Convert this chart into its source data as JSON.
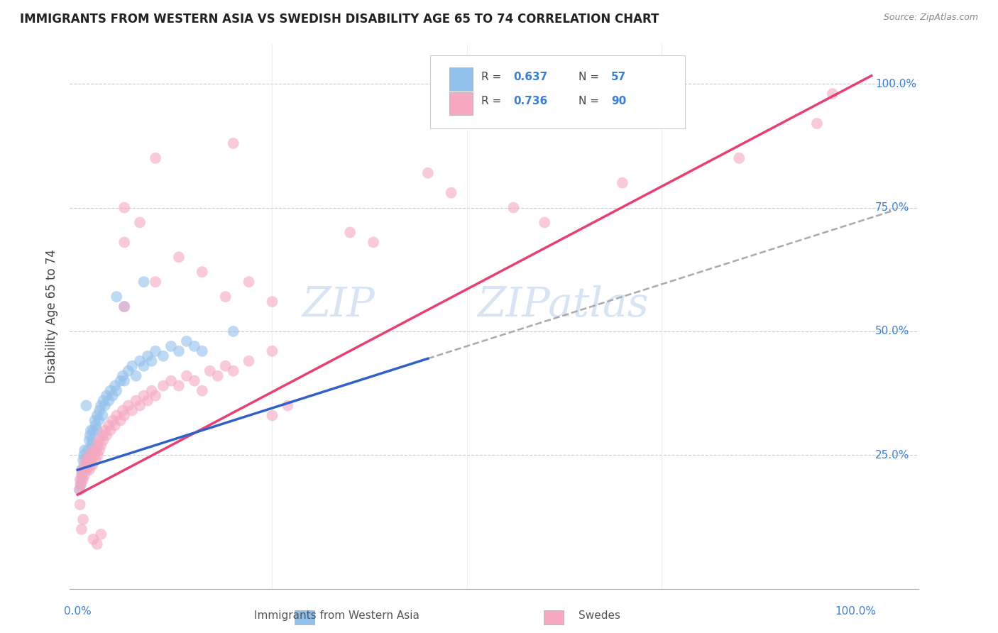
{
  "title": "IMMIGRANTS FROM WESTERN ASIA VS SWEDISH DISABILITY AGE 65 TO 74 CORRELATION CHART",
  "source": "Source: ZipAtlas.com",
  "ylabel": "Disability Age 65 to 74",
  "legend_label1": "Immigrants from Western Asia",
  "legend_label2": "Swedes",
  "r1": 0.637,
  "n1": 57,
  "r2": 0.736,
  "n2": 90,
  "blue_color": "#92c0ec",
  "pink_color": "#f5a8c0",
  "blue_line_color": "#3060c8",
  "pink_line_color": "#e84070",
  "dashed_line_color": "#aaaaaa",
  "watermark_color": "#c8d8f0",
  "blue_points": [
    [
      0.005,
      0.2
    ],
    [
      0.005,
      0.22
    ],
    [
      0.007,
      0.24
    ],
    [
      0.008,
      0.25
    ],
    [
      0.009,
      0.26
    ],
    [
      0.01,
      0.22
    ],
    [
      0.01,
      0.24
    ],
    [
      0.012,
      0.23
    ],
    [
      0.013,
      0.26
    ],
    [
      0.015,
      0.25
    ],
    [
      0.015,
      0.28
    ],
    [
      0.016,
      0.29
    ],
    [
      0.017,
      0.3
    ],
    [
      0.018,
      0.27
    ],
    [
      0.019,
      0.28
    ],
    [
      0.02,
      0.3
    ],
    [
      0.022,
      0.32
    ],
    [
      0.023,
      0.31
    ],
    [
      0.025,
      0.3
    ],
    [
      0.025,
      0.33
    ],
    [
      0.027,
      0.32
    ],
    [
      0.028,
      0.34
    ],
    [
      0.03,
      0.35
    ],
    [
      0.032,
      0.33
    ],
    [
      0.033,
      0.36
    ],
    [
      0.035,
      0.35
    ],
    [
      0.037,
      0.37
    ],
    [
      0.04,
      0.36
    ],
    [
      0.042,
      0.38
    ],
    [
      0.045,
      0.37
    ],
    [
      0.048,
      0.39
    ],
    [
      0.05,
      0.38
    ],
    [
      0.055,
      0.4
    ],
    [
      0.058,
      0.41
    ],
    [
      0.06,
      0.4
    ],
    [
      0.065,
      0.42
    ],
    [
      0.07,
      0.43
    ],
    [
      0.075,
      0.41
    ],
    [
      0.08,
      0.44
    ],
    [
      0.085,
      0.43
    ],
    [
      0.09,
      0.45
    ],
    [
      0.095,
      0.44
    ],
    [
      0.1,
      0.46
    ],
    [
      0.11,
      0.45
    ],
    [
      0.12,
      0.47
    ],
    [
      0.13,
      0.46
    ],
    [
      0.14,
      0.48
    ],
    [
      0.15,
      0.47
    ],
    [
      0.16,
      0.46
    ],
    [
      0.003,
      0.18
    ],
    [
      0.004,
      0.19
    ],
    [
      0.006,
      0.21
    ],
    [
      0.011,
      0.35
    ],
    [
      0.05,
      0.57
    ],
    [
      0.06,
      0.55
    ],
    [
      0.085,
      0.6
    ],
    [
      0.2,
      0.5
    ]
  ],
  "pink_points": [
    [
      0.002,
      0.18
    ],
    [
      0.003,
      0.2
    ],
    [
      0.004,
      0.19
    ],
    [
      0.005,
      0.21
    ],
    [
      0.006,
      0.22
    ],
    [
      0.007,
      0.2
    ],
    [
      0.008,
      0.23
    ],
    [
      0.009,
      0.21
    ],
    [
      0.01,
      0.22
    ],
    [
      0.011,
      0.24
    ],
    [
      0.012,
      0.22
    ],
    [
      0.013,
      0.23
    ],
    [
      0.014,
      0.24
    ],
    [
      0.015,
      0.22
    ],
    [
      0.015,
      0.25
    ],
    [
      0.016,
      0.23
    ],
    [
      0.017,
      0.24
    ],
    [
      0.018,
      0.25
    ],
    [
      0.019,
      0.23
    ],
    [
      0.02,
      0.26
    ],
    [
      0.022,
      0.25
    ],
    [
      0.023,
      0.24
    ],
    [
      0.024,
      0.26
    ],
    [
      0.025,
      0.27
    ],
    [
      0.026,
      0.25
    ],
    [
      0.027,
      0.28
    ],
    [
      0.028,
      0.26
    ],
    [
      0.03,
      0.27
    ],
    [
      0.032,
      0.29
    ],
    [
      0.033,
      0.28
    ],
    [
      0.035,
      0.3
    ],
    [
      0.037,
      0.29
    ],
    [
      0.04,
      0.31
    ],
    [
      0.042,
      0.3
    ],
    [
      0.045,
      0.32
    ],
    [
      0.048,
      0.31
    ],
    [
      0.05,
      0.33
    ],
    [
      0.055,
      0.32
    ],
    [
      0.058,
      0.34
    ],
    [
      0.06,
      0.33
    ],
    [
      0.065,
      0.35
    ],
    [
      0.07,
      0.34
    ],
    [
      0.075,
      0.36
    ],
    [
      0.08,
      0.35
    ],
    [
      0.085,
      0.37
    ],
    [
      0.09,
      0.36
    ],
    [
      0.095,
      0.38
    ],
    [
      0.1,
      0.37
    ],
    [
      0.11,
      0.39
    ],
    [
      0.12,
      0.4
    ],
    [
      0.13,
      0.39
    ],
    [
      0.14,
      0.41
    ],
    [
      0.15,
      0.4
    ],
    [
      0.16,
      0.38
    ],
    [
      0.17,
      0.42
    ],
    [
      0.18,
      0.41
    ],
    [
      0.19,
      0.43
    ],
    [
      0.2,
      0.42
    ],
    [
      0.22,
      0.44
    ],
    [
      0.25,
      0.46
    ],
    [
      0.005,
      0.1
    ],
    [
      0.007,
      0.12
    ],
    [
      0.003,
      0.15
    ],
    [
      0.06,
      0.55
    ],
    [
      0.1,
      0.6
    ],
    [
      0.13,
      0.65
    ],
    [
      0.16,
      0.62
    ],
    [
      0.19,
      0.57
    ],
    [
      0.22,
      0.6
    ],
    [
      0.25,
      0.56
    ],
    [
      0.06,
      0.68
    ],
    [
      0.08,
      0.72
    ],
    [
      0.06,
      0.75
    ],
    [
      0.35,
      0.7
    ],
    [
      0.38,
      0.68
    ],
    [
      0.45,
      0.82
    ],
    [
      0.48,
      0.78
    ],
    [
      0.56,
      0.75
    ],
    [
      0.6,
      0.72
    ],
    [
      0.7,
      0.8
    ],
    [
      0.85,
      0.85
    ],
    [
      0.95,
      0.92
    ],
    [
      0.97,
      0.98
    ],
    [
      0.1,
      0.85
    ],
    [
      0.2,
      0.88
    ],
    [
      0.02,
      0.08
    ],
    [
      0.025,
      0.07
    ],
    [
      0.03,
      0.09
    ],
    [
      0.25,
      0.33
    ],
    [
      0.27,
      0.35
    ]
  ]
}
